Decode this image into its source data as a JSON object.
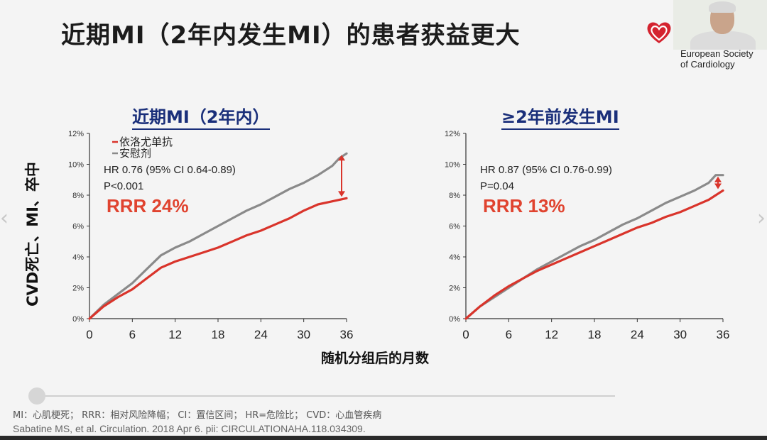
{
  "slide": {
    "title": "近期MI（2年内发生MI）的患者获益更大",
    "logo_text_line1": "European Society",
    "logo_text_line2": "of Cardiology",
    "y_axis_label": "CVD死亡、MI、卒中",
    "x_axis_label": "随机分组后的月数",
    "footnote": "MI：心肌梗死；  RRR：相对风险降幅；  CI：置信区间；  HR=危险比；  CVD：心血管疾病",
    "citation": "Sabatine MS, et al. Circulation. 2018 Apr 6. pii: CIRCULATIONAHA.118.034309.",
    "colors": {
      "treatment": "#d9342b",
      "placebo": "#8a8a8a",
      "title_blue": "#1a2f7a",
      "rrr": "#e0432f"
    }
  },
  "chart_data": [
    {
      "type": "line",
      "title": "近期MI（2年内）",
      "x_ticks": [
        "0",
        "6",
        "12",
        "18",
        "24",
        "30",
        "36"
      ],
      "y_ticks": [
        "0%",
        "2%",
        "4%",
        "6%",
        "8%",
        "10%",
        "12%"
      ],
      "xlim": [
        0,
        36
      ],
      "ylim": [
        0,
        12
      ],
      "legend": [
        "依洛尤单抗",
        "安慰剂"
      ],
      "hr_text": "HR 0.76 (95% CI 0.64-0.89)",
      "p_text": "P<0.001",
      "rrr_text": "RRR 24%",
      "series": [
        {
          "name": "依洛尤单抗",
          "color": "#d9342b",
          "x": [
            0,
            2,
            4,
            6,
            8,
            10,
            12,
            14,
            16,
            18,
            20,
            22,
            24,
            26,
            28,
            30,
            32,
            34,
            36
          ],
          "y": [
            0,
            0.8,
            1.4,
            1.9,
            2.6,
            3.3,
            3.7,
            4.0,
            4.3,
            4.6,
            5.0,
            5.4,
            5.7,
            6.1,
            6.5,
            7.0,
            7.4,
            7.6,
            7.8
          ]
        },
        {
          "name": "安慰剂",
          "color": "#8a8a8a",
          "x": [
            0,
            2,
            4,
            6,
            8,
            10,
            12,
            14,
            16,
            18,
            20,
            22,
            24,
            26,
            28,
            30,
            32,
            34,
            35,
            36
          ],
          "y": [
            0,
            0.9,
            1.6,
            2.3,
            3.2,
            4.1,
            4.6,
            5.0,
            5.5,
            6.0,
            6.5,
            7.0,
            7.4,
            7.9,
            8.4,
            8.8,
            9.3,
            9.9,
            10.4,
            10.7
          ]
        }
      ]
    },
    {
      "type": "line",
      "title": "≥2年前发生MI",
      "x_ticks": [
        "0",
        "6",
        "12",
        "18",
        "24",
        "30",
        "36"
      ],
      "y_ticks": [
        "0%",
        "2%",
        "4%",
        "6%",
        "8%",
        "10%",
        "12%"
      ],
      "xlim": [
        0,
        36
      ],
      "ylim": [
        0,
        12
      ],
      "hr_text": "HR 0.87 (95% CI 0.76-0.99)",
      "p_text": "P=0.04",
      "rrr_text": "RRR 13%",
      "series": [
        {
          "name": "依洛尤单抗",
          "color": "#d9342b",
          "x": [
            0,
            2,
            4,
            6,
            8,
            10,
            12,
            14,
            16,
            18,
            20,
            22,
            24,
            26,
            28,
            30,
            32,
            34,
            35,
            36
          ],
          "y": [
            0,
            0.8,
            1.5,
            2.1,
            2.6,
            3.1,
            3.5,
            3.9,
            4.3,
            4.7,
            5.1,
            5.5,
            5.9,
            6.2,
            6.6,
            6.9,
            7.3,
            7.7,
            8.0,
            8.3
          ]
        },
        {
          "name": "安慰剂",
          "color": "#8a8a8a",
          "x": [
            0,
            2,
            4,
            6,
            8,
            10,
            12,
            14,
            16,
            18,
            20,
            22,
            24,
            26,
            28,
            30,
            32,
            34,
            35,
            36
          ],
          "y": [
            0,
            0.8,
            1.4,
            2.0,
            2.6,
            3.2,
            3.7,
            4.2,
            4.7,
            5.1,
            5.6,
            6.1,
            6.5,
            7.0,
            7.5,
            7.9,
            8.3,
            8.8,
            9.3,
            9.3
          ]
        }
      ]
    }
  ]
}
